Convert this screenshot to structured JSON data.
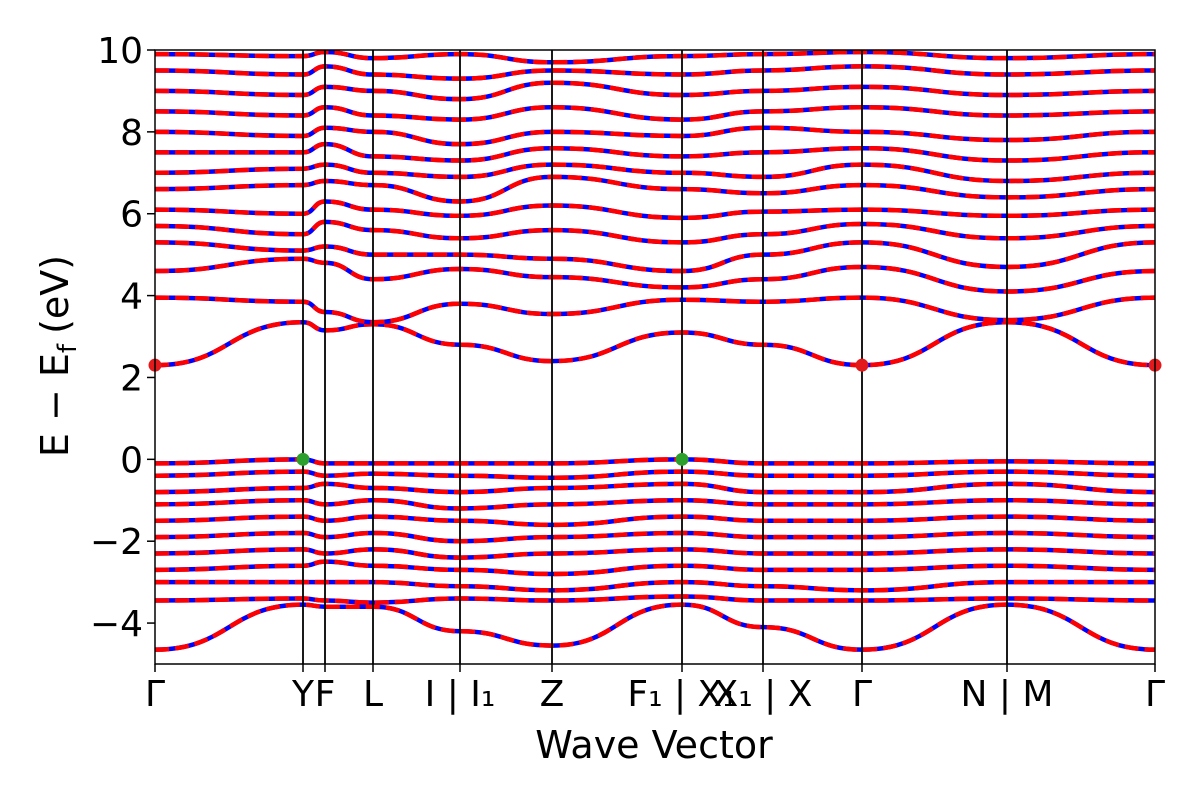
{
  "chart_data": {
    "type": "line",
    "xlabel": "Wave Vector",
    "ylabel": "E − E",
    "ylabel_subscript": "f",
    "ylabel_unit": "(eV)",
    "ylim": [
      -5,
      10
    ],
    "yticks": [
      10,
      8,
      6,
      4,
      2,
      0,
      -2,
      -4
    ],
    "ytick_labels": [
      "10",
      "8",
      "6",
      "4",
      "2",
      "0",
      "−2",
      "−4"
    ],
    "grid": false,
    "kpath": [
      {
        "label": "Γ",
        "pos": 0.0
      },
      {
        "label": "Y",
        "pos": 0.148
      },
      {
        "label": "F",
        "pos": 0.17
      },
      {
        "label": "L",
        "pos": 0.218
      },
      {
        "label": "I | I₁",
        "pos": 0.305
      },
      {
        "label": "Z",
        "pos": 0.397
      },
      {
        "label": "F₁ | X₁",
        "pos": 0.527
      },
      {
        "label": "X₁ | X",
        "pos": 0.608
      },
      {
        "label": "Γ",
        "pos": 0.707
      },
      {
        "label": "N | M",
        "pos": 0.852
      },
      {
        "label": "Γ",
        "pos": 1.0
      }
    ],
    "vertical_lines": [
      0.148,
      0.17,
      0.218,
      0.305,
      0.397,
      0.527,
      0.608,
      0.707,
      0.852
    ],
    "colors": {
      "spin_up": "#0000ff",
      "spin_down": "#ff0000",
      "cbm_marker": "#e31a1c",
      "vbm_marker": "#2ca02c"
    },
    "markers": [
      {
        "name": "CBM",
        "x": 0.0,
        "y": 2.3,
        "color": "#e31a1c"
      },
      {
        "name": "CBM",
        "x": 0.707,
        "y": 2.3,
        "color": "#e31a1c"
      },
      {
        "name": "CBM",
        "x": 1.0,
        "y": 2.3,
        "color": "#e31a1c"
      },
      {
        "name": "VBM",
        "x": 0.148,
        "y": 0.0,
        "color": "#2ca02c"
      },
      {
        "name": "VBM",
        "x": 0.527,
        "y": 0.0,
        "color": "#2ca02c"
      }
    ],
    "bands": [
      {
        "x": [
          0,
          0.148,
          0.17,
          0.218,
          0.305,
          0.397,
          0.527,
          0.608,
          0.707,
          0.852,
          1.0
        ],
        "y": [
          2.3,
          3.35,
          3.15,
          3.3,
          2.8,
          2.4,
          3.1,
          2.8,
          2.3,
          3.35,
          2.3
        ]
      },
      {
        "x": [
          0,
          0.148,
          0.17,
          0.218,
          0.305,
          0.397,
          0.527,
          0.608,
          0.707,
          0.852,
          1.0
        ],
        "y": [
          3.95,
          3.85,
          3.6,
          3.35,
          3.8,
          3.55,
          3.9,
          3.85,
          3.95,
          3.4,
          3.95
        ]
      },
      {
        "x": [
          0,
          0.148,
          0.17,
          0.218,
          0.305,
          0.397,
          0.527,
          0.608,
          0.707,
          0.852,
          1.0
        ],
        "y": [
          4.6,
          4.9,
          4.8,
          4.4,
          4.65,
          4.45,
          4.2,
          4.4,
          4.7,
          4.1,
          4.6
        ]
      },
      {
        "x": [
          0,
          0.148,
          0.17,
          0.218,
          0.305,
          0.397,
          0.527,
          0.608,
          0.707,
          0.852,
          1.0
        ],
        "y": [
          5.3,
          5.1,
          5.2,
          5.0,
          5.0,
          4.9,
          4.6,
          5.0,
          5.3,
          4.7,
          5.3
        ]
      },
      {
        "x": [
          0,
          0.148,
          0.17,
          0.218,
          0.305,
          0.397,
          0.527,
          0.608,
          0.707,
          0.852,
          1.0
        ],
        "y": [
          5.7,
          5.5,
          5.8,
          5.6,
          5.4,
          5.6,
          5.3,
          5.5,
          5.75,
          5.4,
          5.7
        ]
      },
      {
        "x": [
          0,
          0.148,
          0.17,
          0.218,
          0.305,
          0.397,
          0.527,
          0.608,
          0.707,
          0.852,
          1.0
        ],
        "y": [
          6.1,
          6.0,
          6.3,
          6.1,
          5.95,
          6.2,
          5.9,
          6.05,
          6.1,
          5.95,
          6.1
        ]
      },
      {
        "x": [
          0,
          0.148,
          0.17,
          0.218,
          0.305,
          0.397,
          0.527,
          0.608,
          0.707,
          0.852,
          1.0
        ],
        "y": [
          6.6,
          6.7,
          6.8,
          6.7,
          6.3,
          6.9,
          6.6,
          6.5,
          6.7,
          6.4,
          6.6
        ]
      },
      {
        "x": [
          0,
          0.148,
          0.17,
          0.218,
          0.305,
          0.397,
          0.527,
          0.608,
          0.707,
          0.852,
          1.0
        ],
        "y": [
          7.0,
          7.1,
          7.2,
          7.0,
          6.9,
          7.2,
          7.0,
          6.9,
          7.2,
          6.8,
          7.0
        ]
      },
      {
        "x": [
          0,
          0.148,
          0.17,
          0.218,
          0.305,
          0.397,
          0.527,
          0.608,
          0.707,
          0.852,
          1.0
        ],
        "y": [
          7.5,
          7.5,
          7.7,
          7.4,
          7.3,
          7.6,
          7.4,
          7.5,
          7.6,
          7.3,
          7.5
        ]
      },
      {
        "x": [
          0,
          0.148,
          0.17,
          0.218,
          0.305,
          0.397,
          0.527,
          0.608,
          0.707,
          0.852,
          1.0
        ],
        "y": [
          8.0,
          7.9,
          8.1,
          8.0,
          7.7,
          8.0,
          7.9,
          8.1,
          8.0,
          7.8,
          8.0
        ]
      },
      {
        "x": [
          0,
          0.148,
          0.17,
          0.218,
          0.305,
          0.397,
          0.527,
          0.608,
          0.707,
          0.852,
          1.0
        ],
        "y": [
          8.5,
          8.4,
          8.6,
          8.4,
          8.3,
          8.6,
          8.3,
          8.5,
          8.6,
          8.4,
          8.5
        ]
      },
      {
        "x": [
          0,
          0.148,
          0.17,
          0.218,
          0.305,
          0.397,
          0.527,
          0.608,
          0.707,
          0.852,
          1.0
        ],
        "y": [
          9.0,
          8.9,
          9.1,
          9.0,
          8.8,
          9.2,
          8.9,
          9.0,
          9.1,
          8.9,
          9.0
        ]
      },
      {
        "x": [
          0,
          0.148,
          0.17,
          0.218,
          0.305,
          0.397,
          0.527,
          0.608,
          0.707,
          0.852,
          1.0
        ],
        "y": [
          9.5,
          9.4,
          9.6,
          9.4,
          9.3,
          9.5,
          9.4,
          9.5,
          9.6,
          9.4,
          9.5
        ]
      },
      {
        "x": [
          0,
          0.148,
          0.17,
          0.218,
          0.305,
          0.397,
          0.527,
          0.608,
          0.707,
          0.852,
          1.0
        ],
        "y": [
          9.9,
          9.85,
          9.95,
          9.8,
          9.9,
          9.7,
          9.85,
          9.9,
          9.95,
          9.8,
          9.9
        ]
      },
      {
        "x": [
          0,
          0.148,
          0.17,
          0.218,
          0.305,
          0.397,
          0.527,
          0.608,
          0.707,
          0.852,
          1.0
        ],
        "y": [
          -0.1,
          0.0,
          -0.1,
          -0.1,
          -0.1,
          -0.1,
          0.0,
          -0.1,
          -0.1,
          -0.05,
          -0.1
        ]
      },
      {
        "x": [
          0,
          0.148,
          0.17,
          0.218,
          0.305,
          0.397,
          0.527,
          0.608,
          0.707,
          0.852,
          1.0
        ],
        "y": [
          -0.4,
          -0.3,
          -0.4,
          -0.35,
          -0.4,
          -0.45,
          -0.3,
          -0.4,
          -0.4,
          -0.3,
          -0.4
        ]
      },
      {
        "x": [
          0,
          0.148,
          0.17,
          0.218,
          0.305,
          0.397,
          0.527,
          0.608,
          0.707,
          0.852,
          1.0
        ],
        "y": [
          -0.8,
          -0.7,
          -0.6,
          -0.7,
          -0.8,
          -0.7,
          -0.6,
          -0.8,
          -0.8,
          -0.6,
          -0.8
        ]
      },
      {
        "x": [
          0,
          0.148,
          0.17,
          0.218,
          0.305,
          0.397,
          0.527,
          0.608,
          0.707,
          0.852,
          1.0
        ],
        "y": [
          -1.1,
          -1.0,
          -1.1,
          -1.0,
          -1.2,
          -1.1,
          -1.0,
          -1.1,
          -1.1,
          -1.0,
          -1.1
        ]
      },
      {
        "x": [
          0,
          0.148,
          0.17,
          0.218,
          0.305,
          0.397,
          0.527,
          0.608,
          0.707,
          0.852,
          1.0
        ],
        "y": [
          -1.5,
          -1.4,
          -1.5,
          -1.4,
          -1.5,
          -1.6,
          -1.4,
          -1.5,
          -1.5,
          -1.4,
          -1.5
        ]
      },
      {
        "x": [
          0,
          0.148,
          0.17,
          0.218,
          0.305,
          0.397,
          0.527,
          0.608,
          0.707,
          0.852,
          1.0
        ],
        "y": [
          -1.9,
          -1.8,
          -1.9,
          -1.8,
          -2.0,
          -1.9,
          -1.8,
          -1.9,
          -1.9,
          -1.8,
          -1.9
        ]
      },
      {
        "x": [
          0,
          0.148,
          0.17,
          0.218,
          0.305,
          0.397,
          0.527,
          0.608,
          0.707,
          0.852,
          1.0
        ],
        "y": [
          -2.3,
          -2.2,
          -2.3,
          -2.2,
          -2.4,
          -2.3,
          -2.2,
          -2.3,
          -2.3,
          -2.2,
          -2.3
        ]
      },
      {
        "x": [
          0,
          0.148,
          0.17,
          0.218,
          0.305,
          0.397,
          0.527,
          0.608,
          0.707,
          0.852,
          1.0
        ],
        "y": [
          -2.7,
          -2.6,
          -2.5,
          -2.6,
          -2.7,
          -2.8,
          -2.6,
          -2.7,
          -2.7,
          -2.6,
          -2.7
        ]
      },
      {
        "x": [
          0,
          0.148,
          0.17,
          0.218,
          0.305,
          0.397,
          0.527,
          0.608,
          0.707,
          0.852,
          1.0
        ],
        "y": [
          -3.0,
          -3.0,
          -3.0,
          -3.0,
          -3.1,
          -3.2,
          -3.0,
          -3.1,
          -3.2,
          -3.0,
          -3.0
        ]
      },
      {
        "x": [
          0,
          0.148,
          0.17,
          0.218,
          0.305,
          0.397,
          0.527,
          0.608,
          0.707,
          0.852,
          1.0
        ],
        "y": [
          -3.45,
          -3.4,
          -3.45,
          -3.5,
          -3.4,
          -3.45,
          -3.35,
          -3.45,
          -3.45,
          -3.4,
          -3.45
        ]
      },
      {
        "x": [
          0,
          0.148,
          0.17,
          0.218,
          0.305,
          0.397,
          0.527,
          0.608,
          0.707,
          0.852,
          1.0
        ],
        "y": [
          -4.65,
          -3.55,
          -3.6,
          -3.6,
          -4.2,
          -4.55,
          -3.55,
          -4.1,
          -4.65,
          -3.55,
          -4.65
        ]
      }
    ]
  }
}
